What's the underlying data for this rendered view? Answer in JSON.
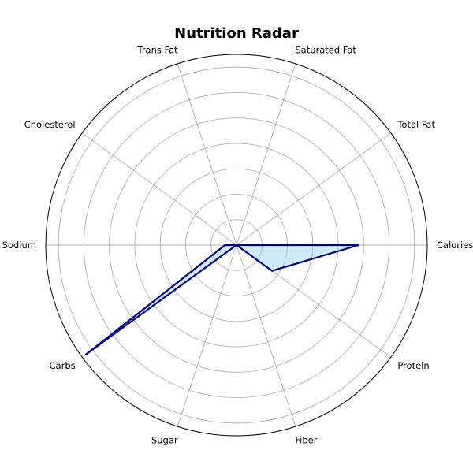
{
  "chart_data": {
    "type": "radar",
    "title": "Nutrition Radar",
    "categories": [
      "Calories",
      "Total Fat",
      "Saturated Fat",
      "Trans Fat",
      "Cholesterol",
      "Sodium",
      "Carbs",
      "Sugar",
      "Fiber",
      "Protein"
    ],
    "series": [
      {
        "values": [
          0.64,
          0,
          0,
          0,
          0,
          0.06,
          0.98,
          0,
          0,
          0.23
        ],
        "line_color": "#00008b",
        "fill_color": "#87ceeb",
        "fill_opacity": 0.4
      }
    ],
    "rlim": [
      0,
      1
    ],
    "rings": 7,
    "grid": true,
    "polar_axis_frame_color": "#000000",
    "grid_color": "#b0b0b0"
  }
}
